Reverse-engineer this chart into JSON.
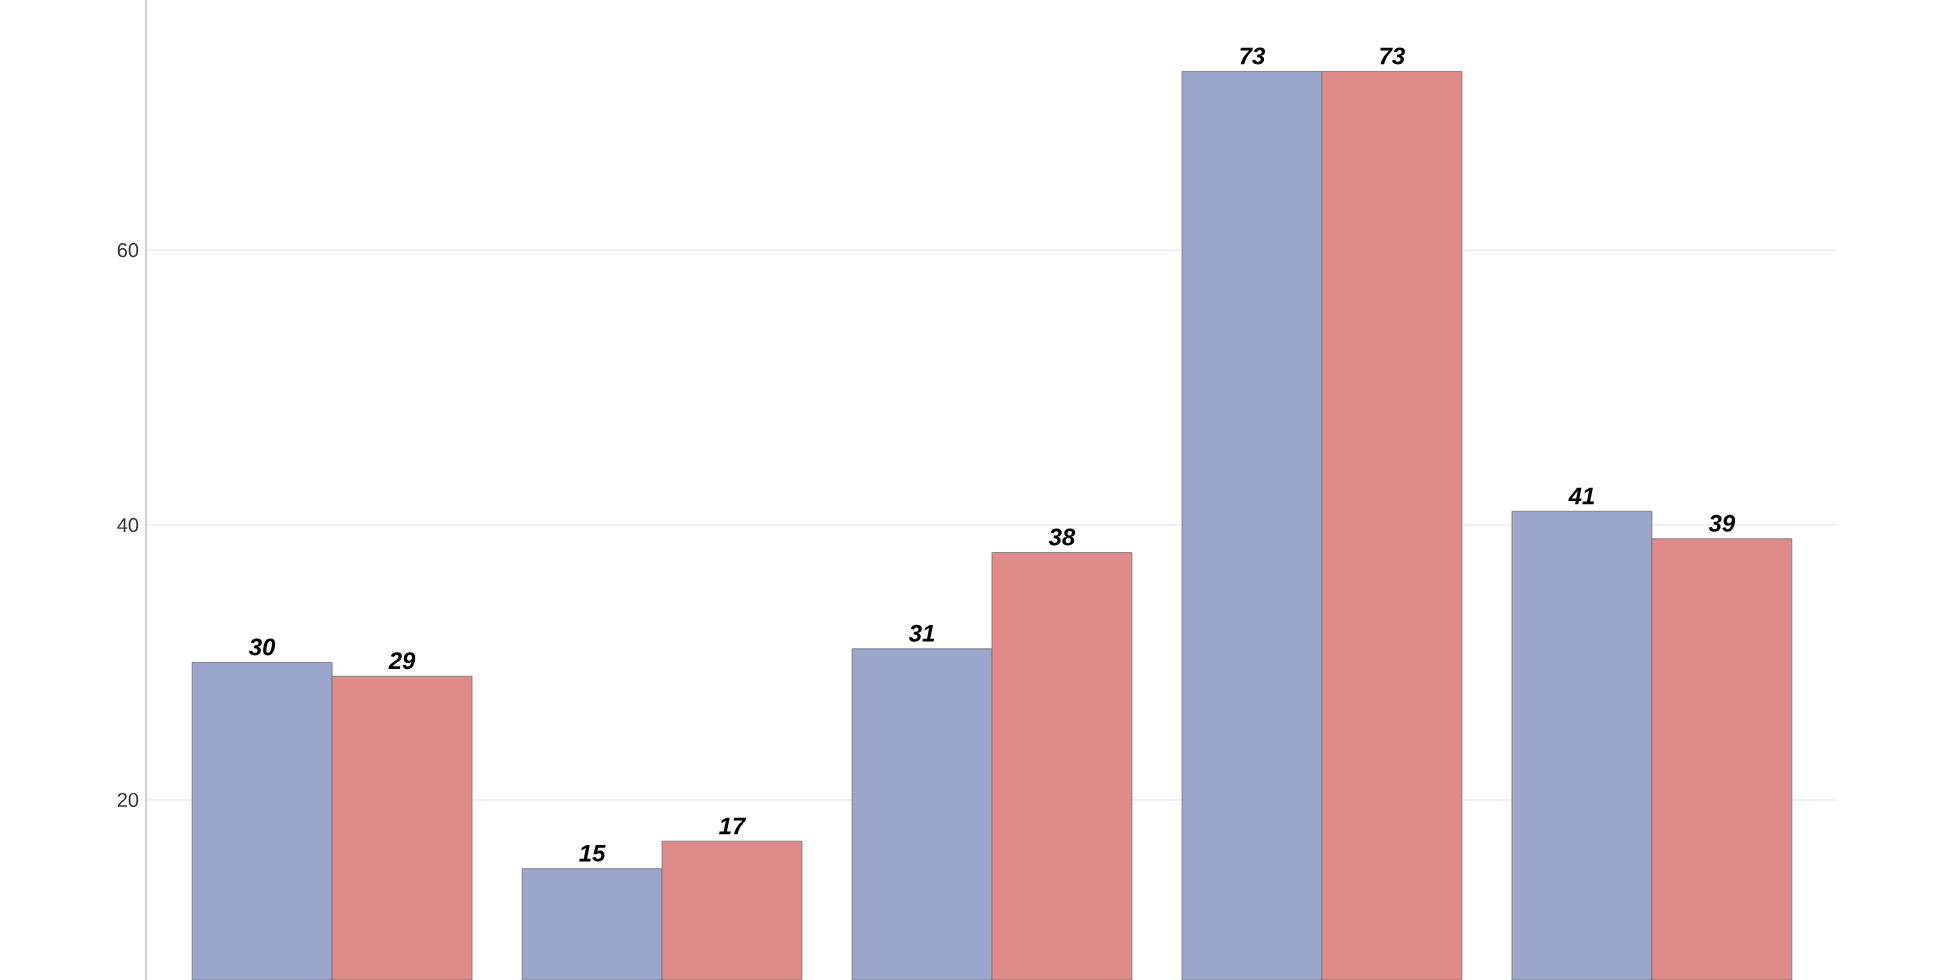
{
  "chart_data": {
    "type": "bar",
    "categories": [
      null,
      null,
      null,
      null,
      null
    ],
    "series": [
      {
        "color": "#9aa6cc",
        "values": [
          30,
          15,
          31,
          73,
          41
        ]
      },
      {
        "color": "#e08a8a",
        "values": [
          29,
          17,
          38,
          73,
          39
        ]
      }
    ],
    "ylim": [
      6.9,
      78.2
    ],
    "yticks": [
      20,
      40,
      60
    ],
    "grid": "y",
    "data_labels": true,
    "tick_labels": "y"
  }
}
